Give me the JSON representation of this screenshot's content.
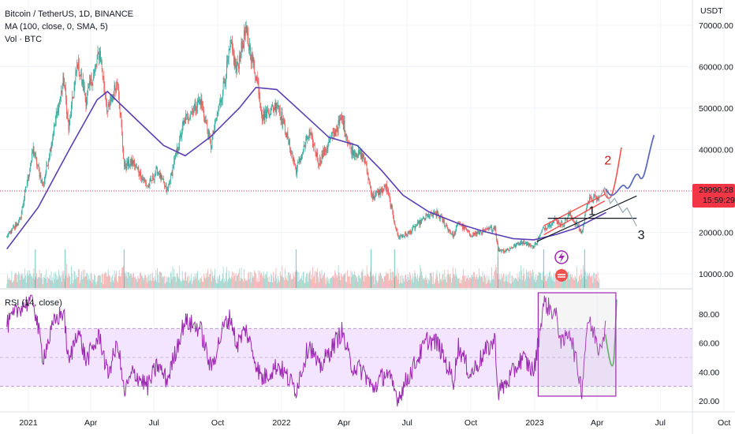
{
  "header": {
    "symbol_line": "Bitcoin / TetherUS, 1D, BINANCE",
    "ma_line": "MA (100, close, 0, SMA, 5)",
    "vol_line": "Vol · BTC"
  },
  "rsi_label": "RSI (14, close)",
  "price_tag": {
    "value": "29990.28",
    "countdown": "15:59:29",
    "color": "#f23645"
  },
  "annotations": {
    "wave1": "1",
    "wave2": "2",
    "wave3": "3"
  },
  "colors": {
    "up": "#26a69a",
    "down": "#ef5350",
    "ma": "#5b3fb5",
    "rsi": "#9c27b0",
    "rsi_band": "#f3e5ff"
  },
  "chart_data": [
    {
      "type": "candlestick",
      "title": "Bitcoin / TetherUS, 1D, BINANCE",
      "price_unit": "USDT",
      "y_ticks": [
        "70000.00",
        "60000.00",
        "50000.00",
        "40000.00",
        "30000.00",
        "20000.00",
        "10000.00"
      ],
      "y_tick_values": [
        70000,
        60000,
        50000,
        40000,
        30000,
        20000,
        10000
      ],
      "ylim": [
        7000,
        73500
      ],
      "x_ticks": [
        "2021",
        "Apr",
        "Jul",
        "Oct",
        "2022",
        "Apr",
        "Jul",
        "Oct",
        "2023",
        "Apr",
        "Jul",
        "Oct"
      ],
      "x_tick_months": [
        "2021-01",
        "2021-04",
        "2021-07",
        "2021-10",
        "2022-01",
        "2022-04",
        "2022-07",
        "2022-10",
        "2023-01",
        "2023-04",
        "2023-07",
        "2023-10"
      ],
      "price_path": [
        [
          "2020-12-01",
          19000
        ],
        [
          "2020-12-20",
          23000
        ],
        [
          "2021-01-08",
          40000
        ],
        [
          "2021-01-22",
          31000
        ],
        [
          "2021-02-08",
          46000
        ],
        [
          "2021-02-21",
          57000
        ],
        [
          "2021-02-28",
          45000
        ],
        [
          "2021-03-13",
          61000
        ],
        [
          "2021-03-25",
          52000
        ],
        [
          "2021-04-14",
          63500
        ],
        [
          "2021-04-25",
          49000
        ],
        [
          "2021-05-10",
          57000
        ],
        [
          "2021-05-19",
          36000
        ],
        [
          "2021-06-01",
          37000
        ],
        [
          "2021-06-22",
          31000
        ],
        [
          "2021-07-06",
          35000
        ],
        [
          "2021-07-20",
          29800
        ],
        [
          "2021-08-14",
          47000
        ],
        [
          "2021-09-06",
          52000
        ],
        [
          "2021-09-21",
          41000
        ],
        [
          "2021-10-10",
          56000
        ],
        [
          "2021-10-20",
          65000
        ],
        [
          "2021-10-28",
          59000
        ],
        [
          "2021-11-10",
          68500
        ],
        [
          "2021-11-28",
          56000
        ],
        [
          "2021-12-04",
          48000
        ],
        [
          "2021-12-27",
          51000
        ],
        [
          "2022-01-22",
          35000
        ],
        [
          "2022-02-10",
          44000
        ],
        [
          "2022-02-24",
          37000
        ],
        [
          "2022-03-29",
          47500
        ],
        [
          "2022-04-11",
          40000
        ],
        [
          "2022-04-30",
          38000
        ],
        [
          "2022-05-12",
          28500
        ],
        [
          "2022-06-01",
          31000
        ],
        [
          "2022-06-18",
          18900
        ],
        [
          "2022-07-01",
          19500
        ],
        [
          "2022-07-30",
          24000
        ],
        [
          "2022-08-14",
          24500
        ],
        [
          "2022-09-06",
          19000
        ],
        [
          "2022-09-13",
          22500
        ],
        [
          "2022-09-30",
          19400
        ],
        [
          "2022-10-25",
          20500
        ],
        [
          "2022-11-05",
          21300
        ],
        [
          "2022-11-09",
          15800
        ],
        [
          "2022-11-21",
          15600
        ],
        [
          "2022-12-14",
          17800
        ],
        [
          "2022-12-31",
          16500
        ],
        [
          "2023-01-14",
          21000
        ],
        [
          "2023-01-31",
          23100
        ],
        [
          "2023-02-10",
          21800
        ],
        [
          "2023-02-20",
          24500
        ],
        [
          "2023-03-10",
          19800
        ],
        [
          "2023-03-18",
          27500
        ],
        [
          "2023-03-30",
          28500
        ],
        [
          "2023-04-03",
          27800
        ],
        [
          "2023-04-11",
          30200
        ],
        [
          "2023-04-14",
          30600
        ]
      ],
      "series": [
        {
          "name": "MA (100, close, 0, SMA, 5)",
          "points": [
            [
              "2020-12-01",
              16000
            ],
            [
              "2021-01-15",
              26000
            ],
            [
              "2021-03-01",
              40000
            ],
            [
              "2021-04-10",
              52000
            ],
            [
              "2021-04-25",
              54000
            ],
            [
              "2021-06-01",
              48000
            ],
            [
              "2021-07-15",
              41000
            ],
            [
              "2021-08-15",
              38500
            ],
            [
              "2021-09-20",
              43000
            ],
            [
              "2021-11-01",
              50000
            ],
            [
              "2021-11-25",
              55000
            ],
            [
              "2021-12-25",
              54500
            ],
            [
              "2022-01-30",
              49000
            ],
            [
              "2022-03-10",
              43000
            ],
            [
              "2022-04-20",
              41000
            ],
            [
              "2022-05-25",
              35000
            ],
            [
              "2022-06-25",
              29000
            ],
            [
              "2022-08-01",
              25000
            ],
            [
              "2022-09-15",
              22000
            ],
            [
              "2022-10-20",
              20200
            ],
            [
              "2022-12-01",
              18500
            ],
            [
              "2022-12-31",
              18200
            ],
            [
              "2023-02-01",
              19500
            ],
            [
              "2023-03-01",
              21000
            ],
            [
              "2023-04-14",
              24800
            ]
          ]
        },
        {
          "name": "RSI (14, close)",
          "axis_ticks": [
            "80.00",
            "60.00",
            "40.00",
            "20.00"
          ],
          "axis_tick_values": [
            80,
            60,
            40,
            20
          ],
          "band": [
            30,
            70
          ],
          "ylim": [
            14,
            95
          ],
          "points": [
            [
              "2020-12-01",
              72
            ],
            [
              "2020-12-20",
              85
            ],
            [
              "2021-01-08",
              90
            ],
            [
              "2021-01-22",
              50
            ],
            [
              "2021-02-08",
              75
            ],
            [
              "2021-02-21",
              82
            ],
            [
              "2021-02-28",
              45
            ],
            [
              "2021-03-13",
              70
            ],
            [
              "2021-03-25",
              48
            ],
            [
              "2021-04-14",
              65
            ],
            [
              "2021-04-25",
              38
            ],
            [
              "2021-05-10",
              60
            ],
            [
              "2021-05-19",
              25
            ],
            [
              "2021-06-01",
              40
            ],
            [
              "2021-06-22",
              30
            ],
            [
              "2021-07-06",
              45
            ],
            [
              "2021-07-20",
              34
            ],
            [
              "2021-08-14",
              75
            ],
            [
              "2021-09-06",
              70
            ],
            [
              "2021-09-21",
              42
            ],
            [
              "2021-10-10",
              72
            ],
            [
              "2021-10-20",
              78
            ],
            [
              "2021-10-28",
              58
            ],
            [
              "2021-11-10",
              70
            ],
            [
              "2021-11-28",
              42
            ],
            [
              "2021-12-04",
              35
            ],
            [
              "2021-12-27",
              45
            ],
            [
              "2022-01-22",
              28
            ],
            [
              "2022-02-10",
              60
            ],
            [
              "2022-02-24",
              42
            ],
            [
              "2022-03-29",
              68
            ],
            [
              "2022-04-11",
              45
            ],
            [
              "2022-04-30",
              40
            ],
            [
              "2022-05-12",
              28
            ],
            [
              "2022-06-01",
              40
            ],
            [
              "2022-06-18",
              22
            ],
            [
              "2022-07-01",
              35
            ],
            [
              "2022-07-30",
              62
            ],
            [
              "2022-08-14",
              60
            ],
            [
              "2022-09-06",
              34
            ],
            [
              "2022-09-13",
              58
            ],
            [
              "2022-09-30",
              38
            ],
            [
              "2022-10-25",
              56
            ],
            [
              "2022-11-05",
              62
            ],
            [
              "2022-11-09",
              26
            ],
            [
              "2022-11-21",
              32
            ],
            [
              "2022-12-14",
              50
            ],
            [
              "2022-12-31",
              40
            ],
            [
              "2023-01-14",
              88
            ],
            [
              "2023-01-31",
              80
            ],
            [
              "2023-02-10",
              58
            ],
            [
              "2023-02-20",
              70
            ],
            [
              "2023-03-10",
              28
            ],
            [
              "2023-03-18",
              76
            ],
            [
              "2023-03-30",
              64
            ],
            [
              "2023-04-03",
              56
            ],
            [
              "2023-04-11",
              68
            ],
            [
              "2023-04-14",
              72
            ]
          ]
        }
      ],
      "volume": {
        "name": "Vol · BTC",
        "approx_peak_dates": [
          "2021-01-11",
          "2021-02-23",
          "2021-05-19",
          "2022-01-22",
          "2022-05-10",
          "2022-06-13",
          "2022-11-09",
          "2023-01-14",
          "2023-03-14"
        ]
      },
      "current_price": 29990.28,
      "drawings": [
        {
          "kind": "label",
          "text": "1",
          "date": "2023-03-24",
          "price": 25300
        },
        {
          "kind": "label",
          "text": "2",
          "date": "2023-04-16",
          "price": 37500
        },
        {
          "kind": "label",
          "text": "3",
          "date": "2023-06-03",
          "price": 19500
        }
      ]
    }
  ]
}
